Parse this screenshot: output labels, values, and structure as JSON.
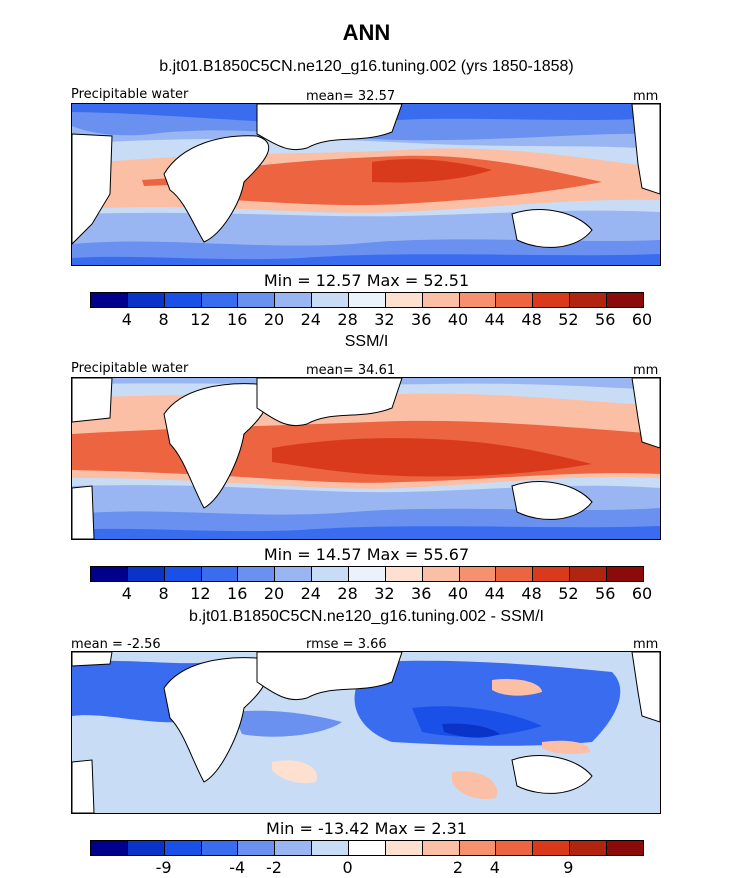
{
  "title": "ANN",
  "colors": [
    "#00008b",
    "#0a33c8",
    "#1a50e8",
    "#3a6cf0",
    "#6a90f0",
    "#9ab6f2",
    "#c8dcf6",
    "#eaf2fb",
    "#fde0d0",
    "#fbbfa6",
    "#f5916e",
    "#ed6440",
    "#d93a1c",
    "#b02410",
    "#8b0a0a"
  ],
  "diff_colors": [
    "#00008b",
    "#0a33c8",
    "#1a50e8",
    "#3a6cf0",
    "#6a90f0",
    "#9ab6f2",
    "#c8dcf6",
    "#ffffff",
    "#fde0d0",
    "#fbbfa6",
    "#f5916e",
    "#ed6440",
    "#d93a1c",
    "#b02410",
    "#8b0a0a"
  ],
  "panels": [
    {
      "title": "b.jt01.B1850C5CN.ne120_g16.tuning.002 (yrs 1850-1858)",
      "left_label": "Precipitable water",
      "center_label": "mean=  32.57",
      "right_label": "mm",
      "stats": "Min =   12.57  Max =   52.51",
      "ticks": [
        "4",
        "8",
        "12",
        "16",
        "20",
        "24",
        "28",
        "32",
        "36",
        "40",
        "44",
        "48",
        "52",
        "56",
        "60"
      ]
    },
    {
      "title": "SSM/I",
      "left_label": "Precipitable water",
      "center_label": "mean=  34.61",
      "right_label": "mm",
      "stats": "Min =   14.57  Max =   55.67",
      "ticks": [
        "4",
        "8",
        "12",
        "16",
        "20",
        "24",
        "28",
        "32",
        "36",
        "40",
        "44",
        "48",
        "52",
        "56",
        "60"
      ]
    },
    {
      "title": "b.jt01.B1850C5CN.ne120_g16.tuning.002 - SSM/I",
      "left_label": "mean =  -2.56",
      "center_label": "rmse =   3.66",
      "right_label": "mm",
      "stats": "Min =  -13.42  Max =    2.31",
      "ticks": [
        "-9",
        "-4",
        "-2",
        "0",
        "2",
        "4",
        "9"
      ]
    }
  ]
}
